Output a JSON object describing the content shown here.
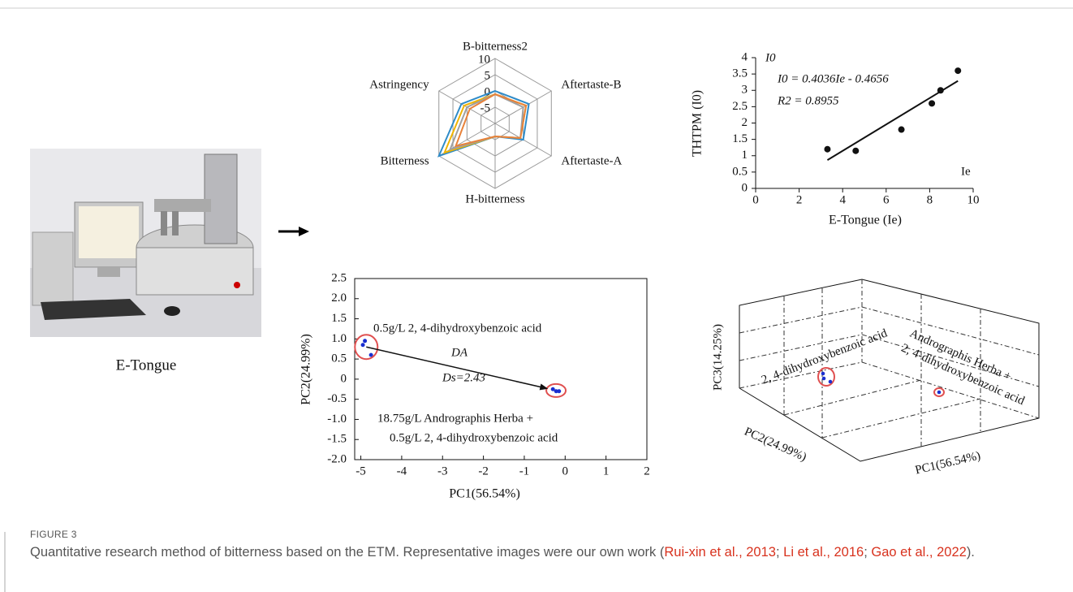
{
  "photo": {
    "label": "E-Tongue"
  },
  "chart_data": [
    {
      "type": "radar",
      "axes": [
        "B-bitterness2",
        "Aftertaste-B",
        "Aftertaste-A",
        "H-bitterness",
        "Bitterness",
        "Astringency"
      ],
      "rlim": [
        -10,
        10
      ],
      "rticks": [
        -5,
        0,
        5,
        10
      ],
      "series": [
        {
          "color": "#2e8bc8",
          "values": [
            0,
            2,
            0,
            -6,
            10,
            2
          ]
        },
        {
          "color": "#f0b400",
          "values": [
            -1,
            1,
            -1,
            -6,
            8,
            1
          ]
        },
        {
          "color": "#a0a0a0",
          "values": [
            -1,
            0,
            -1,
            -6,
            6,
            0
          ]
        },
        {
          "color": "#e8823a",
          "values": [
            -1,
            1,
            -1,
            -6,
            4,
            -1
          ]
        }
      ]
    },
    {
      "type": "scatter",
      "xlabel": "E-Tongue (Ie)",
      "ylabel": "THTPM (I0)",
      "xlim": [
        0,
        10
      ],
      "xticks": [
        0,
        2,
        4,
        6,
        8,
        10
      ],
      "ylim": [
        0,
        4
      ],
      "yticks": [
        0,
        0.5,
        1,
        1.5,
        2,
        2.5,
        3,
        3.5,
        4
      ],
      "series": [
        {
          "color": "#111111",
          "x": [
            3.3,
            4.6,
            6.7,
            8.1,
            8.5,
            9.3
          ],
          "values": [
            1.2,
            1.15,
            1.8,
            2.6,
            3.0,
            3.6
          ]
        }
      ],
      "fit": {
        "slope": 0.4036,
        "intercept": -0.4656
      },
      "annotations": [
        "I0 = 0.4036Ie - 0.4656",
        "R2 = 0.8955",
        "I0",
        "Ie"
      ]
    },
    {
      "type": "scatter",
      "xlabel": "PC1(56.54%)",
      "ylabel": "PC2(24.99%)",
      "xlim": [
        -5.15,
        2
      ],
      "xticks": [
        -5,
        -4,
        -3,
        -2,
        -1,
        0,
        1,
        2
      ],
      "ylim": [
        -2,
        2.5
      ],
      "yticks": [
        2.5,
        {
          "value": 2,
          "label": "2.0"
        },
        1.5,
        {
          "value": 1,
          "label": "1.0"
        },
        0.5,
        0,
        -0.5,
        {
          "value": -1,
          "label": "-1.0"
        },
        -1.5,
        {
          "value": -2,
          "label": "-2.0"
        }
      ],
      "frame": true,
      "series": [
        {
          "color": "#1a2fd0",
          "x": [
            -4.95,
            -4.9,
            -4.75
          ],
          "values": [
            0.85,
            0.95,
            0.6
          ]
        },
        {
          "color": "#1a2fd0",
          "x": [
            -0.3,
            -0.22,
            -0.15
          ],
          "values": [
            -0.25,
            -0.3,
            -0.3
          ]
        }
      ],
      "annotations": [
        "0.5g/L 2, 4-dihydroxybenzoic acid",
        "DA",
        "Ds=2.43",
        "18.75g/L Andrographis Herba +",
        "0.5g/L 2, 4-dihydroxybenzoic acid"
      ]
    },
    {
      "type": "scatter3d",
      "xlabel": "PC1(56.54%)",
      "ylabel": "PC2(24.99%)",
      "zlabel": "PC3(14.25%)",
      "annotations": [
        "2, 4-dihydroxybenzoic acid",
        "Andrographis Herba +",
        "2, 4-dihydroxybenzoic acid"
      ]
    }
  ],
  "caption": {
    "label": "FIGURE 3",
    "text": "Quantitative research method of bitterness based on the ETM. Representative images were our own work (",
    "citations": [
      "Rui-xin et al., 2013",
      "Li et al., 2016",
      "Gao et al., 2022"
    ],
    "separator": "; ",
    "closing": ")."
  }
}
